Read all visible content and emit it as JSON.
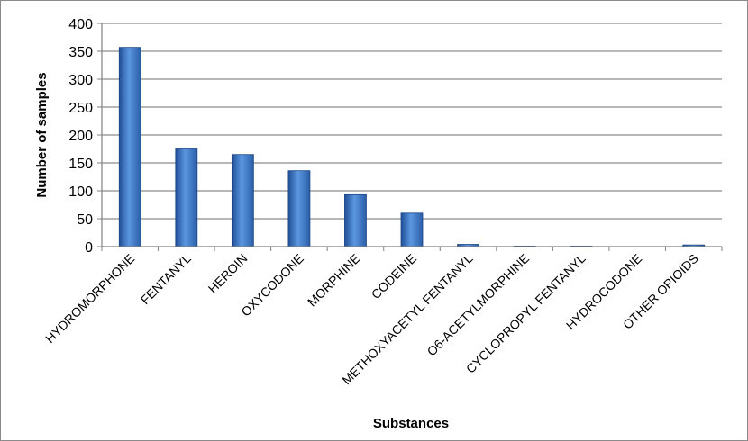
{
  "chart_data": {
    "type": "bar",
    "title": "",
    "xlabel": "Substances",
    "ylabel": "Number of samples",
    "ylim": [
      0,
      400
    ],
    "yticks": [
      0,
      50,
      100,
      150,
      200,
      250,
      300,
      350,
      400
    ],
    "grid": true,
    "legend": "none",
    "categories": [
      "HYDROMORPHONE",
      "FENTANYL",
      "HEROIN",
      "OXYCODONE",
      "MORPHINE",
      "CODEINE",
      "METHOXYACETYL FENTANYL",
      "O6-ACETYLMORPHINE",
      "CYCLOPROPYL FENTANYL",
      "HYDROCODONE",
      "OTHER OPIOIDS"
    ],
    "values": [
      357,
      175,
      165,
      136,
      93,
      60,
      4,
      1,
      1,
      0,
      3
    ],
    "bar_color": "#3a78c8"
  }
}
